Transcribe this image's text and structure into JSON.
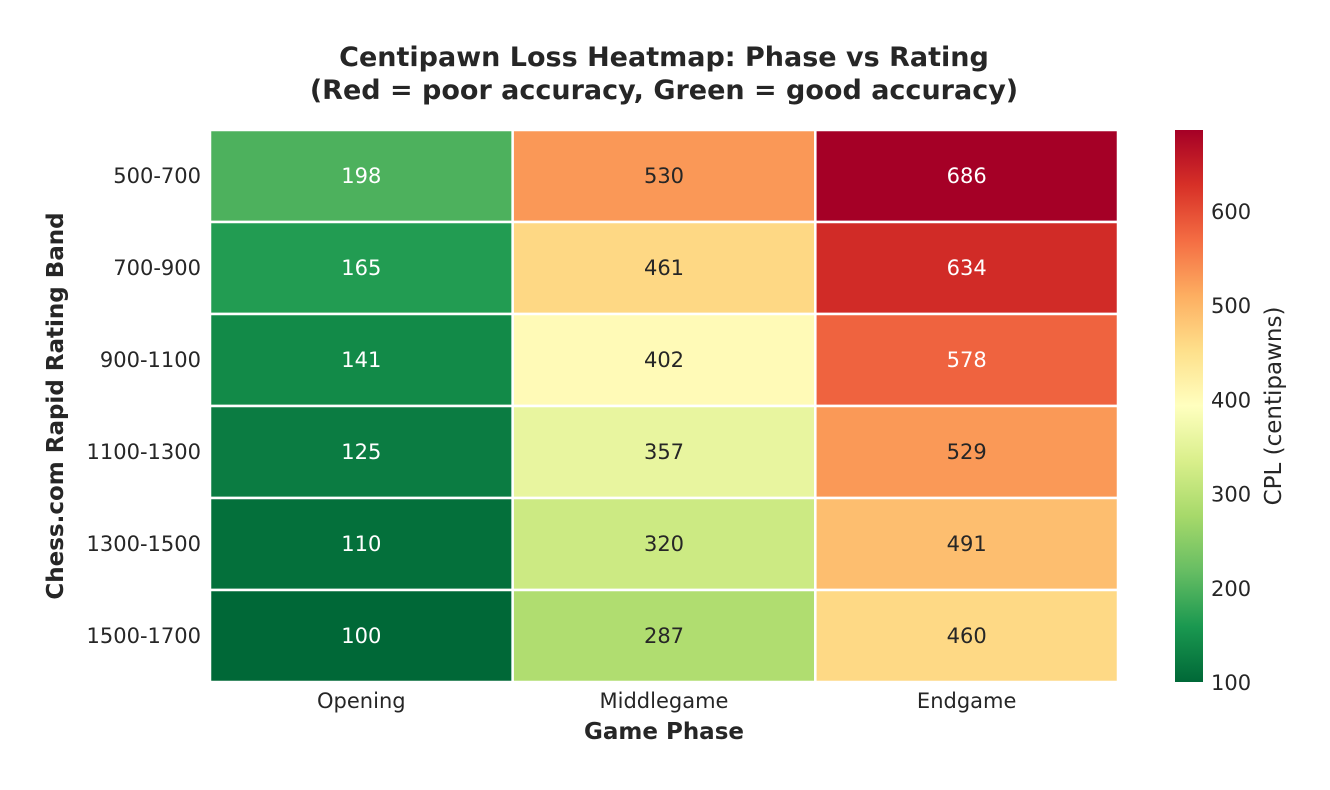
{
  "chart_data": {
    "type": "heatmap",
    "title": [
      "Centipawn Loss Heatmap: Phase vs Rating",
      "(Red = poor accuracy, Green = good accuracy)"
    ],
    "xlabel": "Game Phase",
    "ylabel": "Chess.com Rapid Rating Band",
    "x_categories": [
      "Opening",
      "Middlegame",
      "Endgame"
    ],
    "y_categories": [
      "500-700",
      "700-900",
      "900-1100",
      "1100-1300",
      "1300-1500",
      "1500-1700"
    ],
    "values": [
      [
        198,
        530,
        686
      ],
      [
        165,
        461,
        634
      ],
      [
        141,
        402,
        578
      ],
      [
        125,
        357,
        529
      ],
      [
        110,
        320,
        491
      ],
      [
        100,
        287,
        460
      ]
    ],
    "colorbar": {
      "label": "CPL (centipawns)",
      "ticks": [
        100,
        200,
        300,
        400,
        500,
        600
      ],
      "range": [
        100,
        686
      ],
      "colormap": "RdYlGn_r"
    },
    "colors": {
      "text_dark": "#262626",
      "text_light": "#ffffff",
      "cell_border": "#ffffff"
    }
  }
}
